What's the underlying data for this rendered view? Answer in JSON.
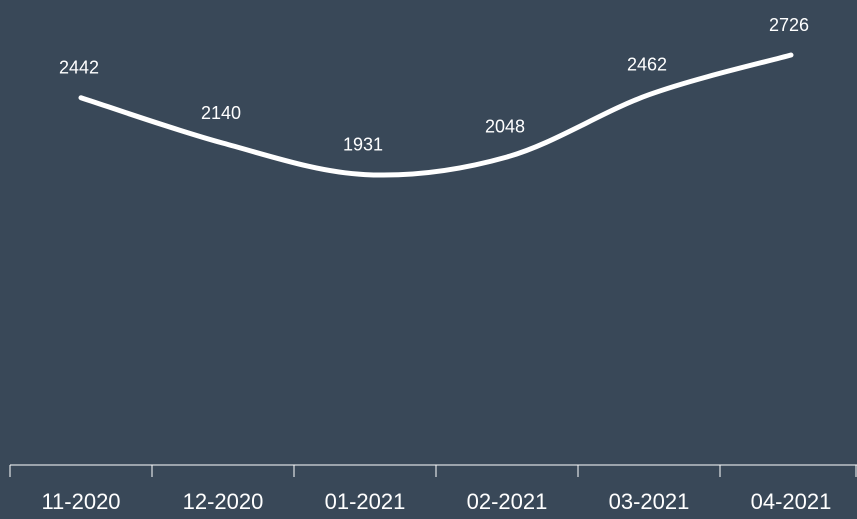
{
  "chart_data": {
    "type": "line",
    "categories": [
      "11-2020",
      "12-2020",
      "01-2021",
      "02-2021",
      "03-2021",
      "04-2021"
    ],
    "series": [
      {
        "color": "#ffffff",
        "values": [
          2442,
          2140,
          1931,
          2048,
          2462,
          2726
        ]
      }
    ],
    "smooth": true,
    "background": "#394858"
  }
}
